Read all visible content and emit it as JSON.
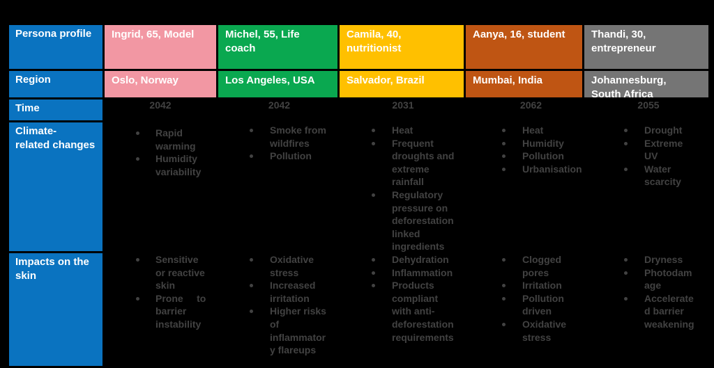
{
  "row_labels": {
    "persona": "Persona profile",
    "region": "Region",
    "time": "Time",
    "climate": "Climate-\nrelated changes",
    "impacts": "Impacts on the\nskin"
  },
  "header": {
    "color": "#0A73C0",
    "text_color": "#FFFFFF"
  },
  "body_text_color": "#424242",
  "columns": [
    {
      "id": "ingrid",
      "color": "#F297A3",
      "persona": "Ingrid, 65, Model",
      "region": "Oslo, Norway",
      "time": "2042",
      "climate": [
        "Rapid\nwarming",
        "Humidity\nvariability"
      ],
      "impacts": [
        "Sensitive\nor reactive\nskin",
        "Prone     to\nbarrier\ninstability"
      ]
    },
    {
      "id": "michel",
      "color": "#0AA850",
      "persona": "Michel, 55, Life\ncoach",
      "region": "Los Angeles, USA",
      "time": "2042",
      "climate": [
        "Smoke from\nwildfires",
        "Pollution"
      ],
      "impacts": [
        "Oxidative\nstress",
        "Increased\nirritation",
        "Higher risks\nof\ninflammator\ny flareups"
      ]
    },
    {
      "id": "camila",
      "color": "#FFC000",
      "persona": "Camila, 40,\nnutritionist",
      "region": "Salvador, Brazil",
      "time": "2031",
      "climate": [
        "Heat",
        "Frequent\ndroughts and\nextreme\nrainfall",
        "Regulatory\npressure on\ndeforestation\nlinked\ningredients"
      ],
      "impacts": [
        "Dehydration",
        "Inflammation",
        "Products\ncompliant\nwith anti-\ndeforestation\nrequirements"
      ]
    },
    {
      "id": "aanya",
      "color": "#BF5513",
      "persona": "Aanya, 16, student",
      "region": "Mumbai, India",
      "time": "2062",
      "climate": [
        "Heat",
        "Humidity",
        "Pollution",
        "Urbanisation"
      ],
      "impacts": [
        "Clogged\npores",
        "Irritation",
        "Pollution\ndriven",
        "Oxidative\nstress"
      ]
    },
    {
      "id": "thandi",
      "color": "#757575",
      "persona": "Thandi, 30,\nentrepreneur",
      "region": "Johannesburg,\nSouth Africa",
      "time": "2055",
      "climate": [
        "Drought",
        "Extreme\nUV",
        "Water\nscarcity"
      ],
      "impacts": [
        "Dryness",
        "Photodam\nage",
        "Accelerate\nd barrier\nweakening"
      ]
    }
  ]
}
